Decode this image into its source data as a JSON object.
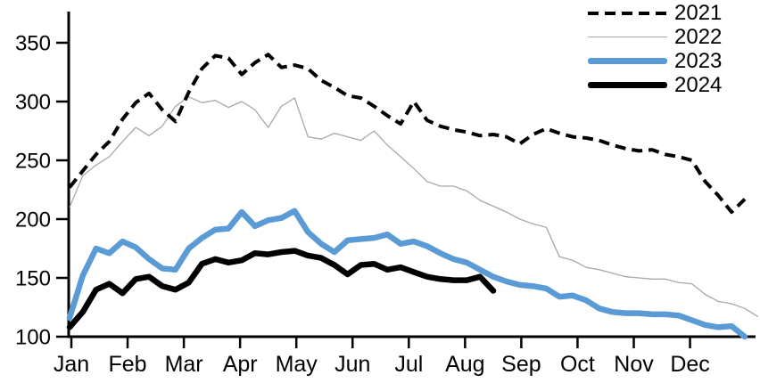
{
  "chart_data": {
    "type": "line",
    "title": "",
    "grid": false,
    "legend_position": "top-right",
    "x_axis": {
      "unit": "weekly",
      "tick_labels": [
        "Jan",
        "Feb",
        "Mar",
        "Apr",
        "May",
        "Jun",
        "Jul",
        "Aug",
        "Sep",
        "Oct",
        "Nov",
        "Dec"
      ]
    },
    "y_axis": {
      "min": 100,
      "max": 350,
      "tick_labels": [
        "100",
        "150",
        "200",
        "250",
        "300",
        "350"
      ]
    },
    "series": [
      {
        "name": "2021",
        "color": "#000000",
        "line_style": "dashed",
        "thickness": "medium",
        "values": [
          227,
          241,
          255,
          266,
          285,
          299,
          307,
          293,
          283,
          308,
          328,
          339,
          337,
          323,
          333,
          340,
          329,
          331,
          328,
          318,
          312,
          305,
          303,
          296,
          288,
          281,
          300,
          284,
          279,
          276,
          274,
          271,
          272,
          270,
          264,
          272,
          277,
          273,
          270,
          269,
          267,
          263,
          260,
          258,
          259,
          255,
          253,
          250,
          232,
          220,
          206,
          217
        ]
      },
      {
        "name": "2022",
        "color": "#a8a8a8",
        "line_style": "solid",
        "thickness": "thin",
        "values": [
          210,
          237,
          246,
          253,
          266,
          278,
          271,
          279,
          296,
          304,
          299,
          301,
          295,
          300,
          293,
          278,
          296,
          303,
          270,
          268,
          273,
          270,
          267,
          275,
          263,
          253,
          243,
          232,
          228,
          228,
          224,
          216,
          211,
          206,
          200,
          196,
          193,
          168,
          165,
          159,
          157,
          154,
          151,
          150,
          149,
          149,
          146,
          145,
          136,
          130,
          128,
          124,
          117
        ]
      },
      {
        "name": "2023",
        "color": "#5b9bd5",
        "line_style": "solid",
        "thickness": "thick",
        "values": [
          116,
          152,
          175,
          171,
          181,
          176,
          166,
          158,
          157,
          175,
          184,
          191,
          192,
          206,
          194,
          199,
          201,
          207,
          189,
          179,
          172,
          182,
          183,
          184,
          187,
          179,
          181,
          177,
          171,
          166,
          163,
          157,
          151,
          147,
          144,
          143,
          141,
          134,
          135,
          131,
          124,
          121,
          120,
          120,
          119,
          119,
          118,
          114,
          110,
          108,
          109,
          100
        ]
      },
      {
        "name": "2024",
        "color": "#000000",
        "line_style": "solid",
        "thickness": "thick",
        "values": [
          108,
          121,
          140,
          145,
          137,
          149,
          151,
          143,
          140,
          146,
          162,
          166,
          163,
          165,
          171,
          170,
          172,
          173,
          169,
          167,
          161,
          153,
          161,
          162,
          157,
          159,
          155,
          151,
          149,
          148,
          148,
          151,
          139
        ]
      }
    ]
  }
}
